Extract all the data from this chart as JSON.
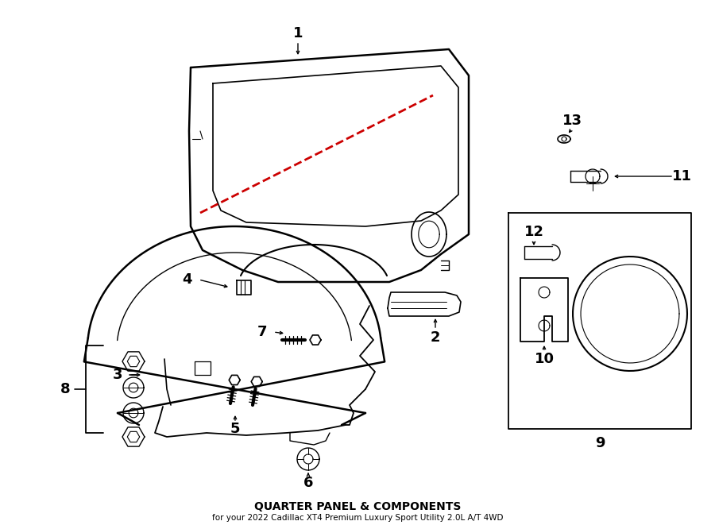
{
  "title": "QUARTER PANEL & COMPONENTS",
  "subtitle": "for your 2022 Cadillac XT4 Premium Luxury Sport Utility 2.0L A/T 4WD",
  "bg_color": "#ffffff",
  "line_color": "#000000",
  "red_dash_color": "#cc0000",
  "fig_width": 9.0,
  "fig_height": 6.61
}
